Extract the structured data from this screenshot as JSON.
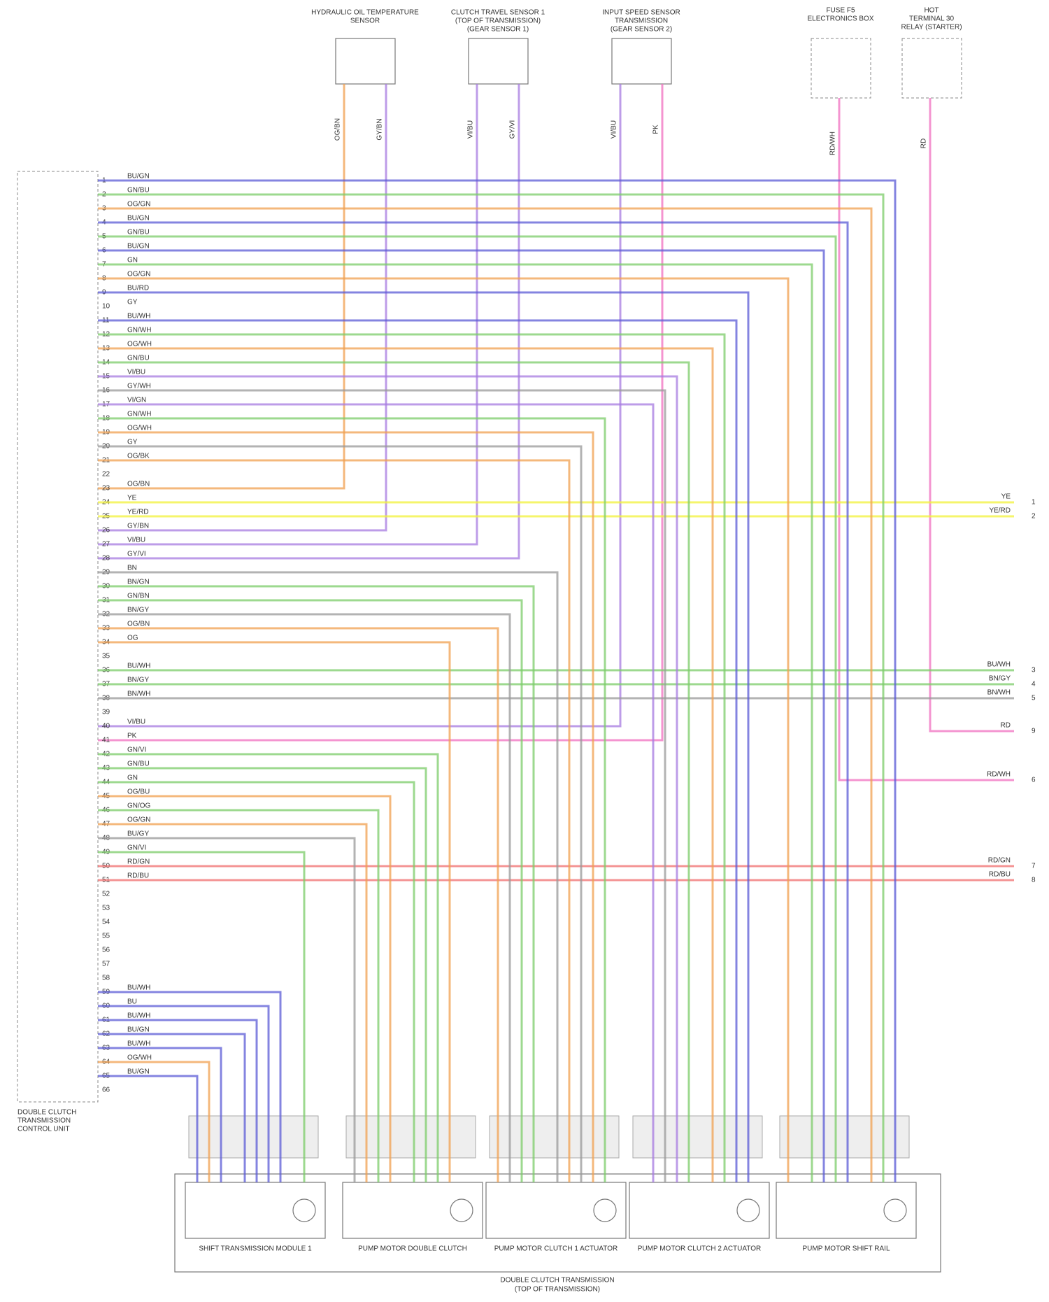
{
  "components": [
    {
      "label": [
        "HYDRAULIC OIL TEMPERATURE",
        "SENSOR"
      ],
      "wires": [
        {
          "wire": "OG/BN"
        },
        {
          "wire": "GY/BN"
        }
      ]
    },
    {
      "label": [
        "CLUTCH TRAVEL SENSOR 1",
        "(TOP OF TRANSMISSION)",
        "(GEAR SENSOR 1)"
      ],
      "wires": [
        {
          "wire": "VI/BU"
        },
        {
          "wire": "GY/VI"
        }
      ]
    },
    {
      "label": [
        "INPUT SPEED SENSOR",
        "TRANSMISSION",
        "(GEAR SENSOR 2)"
      ],
      "wires": [
        {
          "wire": "VI/BU"
        },
        {
          "wire": "PK"
        }
      ]
    }
  ],
  "fuses": [
    {
      "label": [
        "FUSE F5",
        "ELECTRONICS BOX"
      ],
      "wire": "RD/WH",
      "right_label": "RD/WH",
      "right_pin": "6"
    },
    {
      "label": [
        "HOT",
        "TERMINAL 30",
        "RELAY (STARTER)"
      ],
      "wire": "RD",
      "right_label": "RD",
      "right_pin": "9"
    }
  ],
  "connector": {
    "label": [
      "DOUBLE CLUTCH",
      "TRANSMISSION",
      "CONTROL UNIT"
    ],
    "pins": [
      {
        "pin": "1",
        "wire": "BU/GN",
        "color": "#5b5bd6"
      },
      {
        "pin": "2",
        "wire": "GN/BU",
        "color": "#7ccc6a"
      },
      {
        "pin": "3",
        "wire": "OG/GN",
        "color": "#f0a050"
      },
      {
        "pin": "4",
        "wire": "BU/GN",
        "color": "#5b5bd6"
      },
      {
        "pin": "5",
        "wire": "GN/BU",
        "color": "#7ccc6a"
      },
      {
        "pin": "6",
        "wire": "BU/GN",
        "color": "#5b5bd6"
      },
      {
        "pin": "7",
        "wire": "GN",
        "color": "#7ccc6a"
      },
      {
        "pin": "8",
        "wire": "OG/GN",
        "color": "#f0a050"
      },
      {
        "pin": "9",
        "wire": "BU/RD",
        "color": "#5b5bd6"
      },
      {
        "pin": "10",
        "wire": "GY"
      },
      {
        "pin": "11",
        "wire": "BU/WH",
        "color": "#5b5bd6"
      },
      {
        "pin": "12",
        "wire": "GN/WH",
        "color": "#7ccc6a"
      },
      {
        "pin": "13",
        "wire": "OG/WH",
        "color": "#f0a050"
      },
      {
        "pin": "14",
        "wire": "GN/BU",
        "color": "#7ccc6a"
      },
      {
        "pin": "15",
        "wire": "VI/BU",
        "color": "#a77be0"
      },
      {
        "pin": "16",
        "wire": "GY/WH",
        "color": "#999999"
      },
      {
        "pin": "17",
        "wire": "VI/GN",
        "color": "#a77be0"
      },
      {
        "pin": "18",
        "wire": "GN/WH",
        "color": "#7ccc6a"
      },
      {
        "pin": "19",
        "wire": "OG/WH",
        "color": "#f0a050"
      },
      {
        "pin": "20",
        "wire": "GY",
        "color": "#999999"
      },
      {
        "pin": "21",
        "wire": "OG/BK",
        "color": "#f0a050"
      },
      {
        "pin": "22"
      },
      {
        "pin": "23",
        "wire": "OG/BN",
        "color": "#f0a050"
      },
      {
        "pin": "24",
        "wire": "YE",
        "color": "#f2f23a",
        "right_label": "YE",
        "right_pin": "1"
      },
      {
        "pin": "25",
        "wire": "YE/RD",
        "color": "#f2f23a",
        "right_label": "YE/RD",
        "right_pin": "2"
      },
      {
        "pin": "26",
        "wire": "GY/BN",
        "color": "#a77be0"
      },
      {
        "pin": "27",
        "wire": "VI/BU",
        "color": "#a77be0"
      },
      {
        "pin": "28",
        "wire": "GY/VI",
        "color": "#a77be0"
      },
      {
        "pin": "29",
        "wire": "BN",
        "color": "#999999"
      },
      {
        "pin": "30",
        "wire": "BN/GN",
        "color": "#7ccc6a"
      },
      {
        "pin": "31",
        "wire": "GN/BN",
        "color": "#7ccc6a"
      },
      {
        "pin": "32",
        "wire": "BN/GY",
        "color": "#999999"
      },
      {
        "pin": "33",
        "wire": "OG/BN",
        "color": "#f0a050"
      },
      {
        "pin": "34",
        "wire": "OG",
        "color": "#f0a050"
      },
      {
        "pin": "35"
      },
      {
        "pin": "36",
        "wire": "BU/WH",
        "color": "#7ccc6a",
        "right_label": "BU/WH",
        "right_pin": "3"
      },
      {
        "pin": "37",
        "wire": "BN/GY",
        "color": "#7ccc6a",
        "right_label": "BN/GY",
        "right_pin": "4"
      },
      {
        "pin": "38",
        "wire": "BN/WH",
        "color": "#999999",
        "right_label": "BN/WH",
        "right_pin": "5"
      },
      {
        "pin": "39"
      },
      {
        "pin": "40",
        "wire": "VI/BU",
        "color": "#a77be0"
      },
      {
        "pin": "41",
        "wire": "PK",
        "color": "#f070c0"
      },
      {
        "pin": "42",
        "wire": "GN/VI",
        "color": "#7ccc6a"
      },
      {
        "pin": "43",
        "wire": "GN/BU",
        "color": "#7ccc6a"
      },
      {
        "pin": "44",
        "wire": "GN",
        "color": "#7ccc6a"
      },
      {
        "pin": "45",
        "wire": "OG/BU",
        "color": "#f0a050"
      },
      {
        "pin": "46",
        "wire": "GN/OG",
        "color": "#7ccc6a"
      },
      {
        "pin": "47",
        "wire": "OG/GN",
        "color": "#f0a050"
      },
      {
        "pin": "48",
        "wire": "BU/GY",
        "color": "#999999"
      },
      {
        "pin": "49",
        "wire": "GN/VI",
        "color": "#7ccc6a"
      },
      {
        "pin": "50",
        "wire": "RD/GN",
        "color": "#f07070",
        "right_label": "RD/GN",
        "right_pin": "7"
      },
      {
        "pin": "51",
        "wire": "RD/BU",
        "color": "#f07070",
        "right_label": "RD/BU",
        "right_pin": "8"
      },
      {
        "pin": "52"
      },
      {
        "pin": "53"
      },
      {
        "pin": "54"
      },
      {
        "pin": "55"
      },
      {
        "pin": "56"
      },
      {
        "pin": "57"
      },
      {
        "pin": "58"
      },
      {
        "pin": "59",
        "wire": "BU/WH",
        "color": "#5b5bd6"
      },
      {
        "pin": "60",
        "wire": "BU",
        "color": "#5b5bd6"
      },
      {
        "pin": "61",
        "wire": "BU/WH",
        "color": "#5b5bd6"
      },
      {
        "pin": "62",
        "wire": "BU/GN",
        "color": "#5b5bd6"
      },
      {
        "pin": "63",
        "wire": "BU/WH",
        "color": "#5b5bd6"
      },
      {
        "pin": "64",
        "wire": "OG/WH",
        "color": "#f0a050"
      },
      {
        "pin": "65",
        "wire": "BU/GN",
        "color": "#5b5bd6"
      },
      {
        "pin": "66"
      }
    ]
  },
  "modules": [
    "SHIFT TRANSMISSION MODULE 1",
    "PUMP MOTOR DOUBLE CLUTCH",
    "PUMP MOTOR CLUTCH 1 ACTUATOR",
    "PUMP MOTOR CLUTCH 2 ACTUATOR",
    "PUMP MOTOR SHIFT RAIL"
  ],
  "assembly": [
    "DOUBLE CLUTCH TRANSMISSION",
    "(TOP OF TRANSMISSION)"
  ]
}
